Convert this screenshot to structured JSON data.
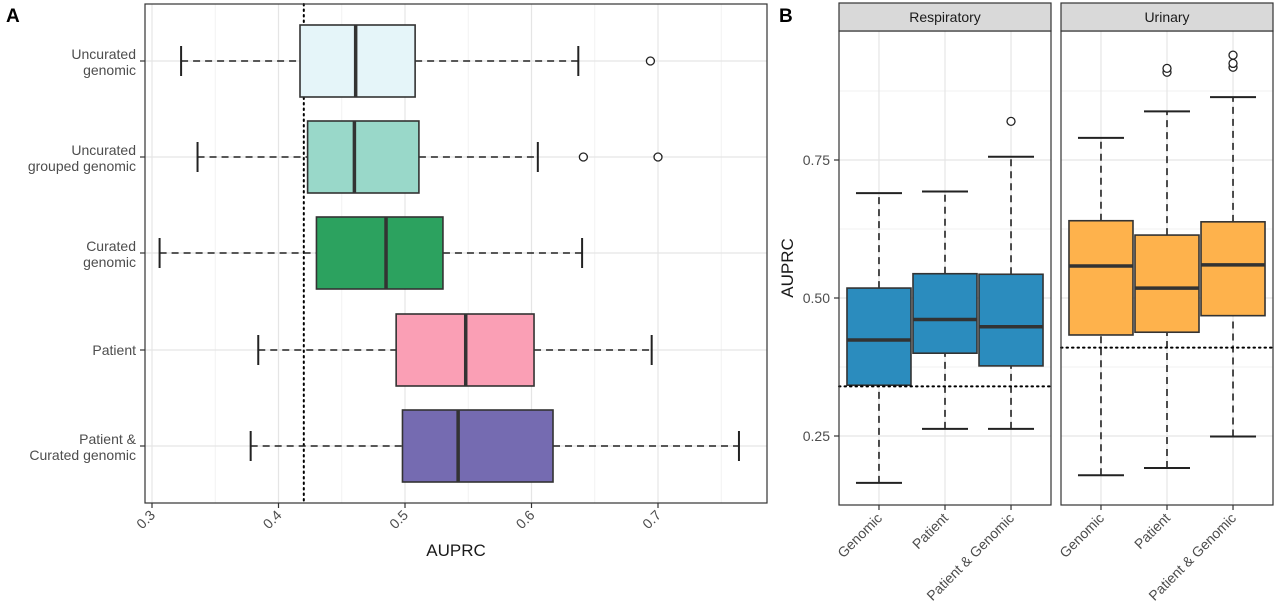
{
  "chart_data": [
    {
      "panel": "A",
      "type": "boxplot",
      "orientation": "horizontal",
      "xlabel": "AUPRC",
      "xlim": [
        0.3,
        0.77
      ],
      "xticks": [
        "0.3",
        "0.4",
        "0.5",
        "0.6",
        "0.7"
      ],
      "xtick_values": [
        0.3,
        0.4,
        0.5,
        0.6,
        0.7
      ],
      "reference_line": 0.42,
      "grid": true,
      "categories": [
        {
          "label": [
            "Uncurated",
            "genomic"
          ],
          "color": "#e5f5f9",
          "whisker_low": 0.323,
          "q1": 0.417,
          "median": 0.461,
          "q3": 0.508,
          "whisker_high": 0.637,
          "outliers": [
            0.694
          ]
        },
        {
          "label": [
            "Uncurated",
            "grouped genomic"
          ],
          "color": "#99d8c9",
          "whisker_low": 0.336,
          "q1": 0.423,
          "median": 0.46,
          "q3": 0.511,
          "whisker_high": 0.605,
          "outliers": [
            0.641,
            0.7
          ]
        },
        {
          "label": [
            "Curated",
            "genomic"
          ],
          "color": "#2ca25f",
          "whisker_low": 0.306,
          "q1": 0.43,
          "median": 0.485,
          "q3": 0.53,
          "whisker_high": 0.64,
          "outliers": []
        },
        {
          "label": [
            "Patient"
          ],
          "color": "#fa9fb5",
          "whisker_low": 0.384,
          "q1": 0.493,
          "median": 0.548,
          "q3": 0.602,
          "whisker_high": 0.695,
          "outliers": []
        },
        {
          "label": [
            "Patient &",
            "Curated genomic"
          ],
          "color": "#756bb1",
          "whisker_low": 0.378,
          "q1": 0.498,
          "median": 0.542,
          "q3": 0.617,
          "whisker_high": 0.764,
          "outliers": []
        }
      ]
    },
    {
      "panel": "B",
      "type": "boxplot",
      "orientation": "vertical",
      "ylabel": "AUPRC",
      "ylim": [
        0.15,
        0.97
      ],
      "yticks": [
        "0.25",
        "0.50",
        "0.75"
      ],
      "ytick_values": [
        0.25,
        0.5,
        0.75
      ],
      "grid": true,
      "facets": [
        {
          "title": "Respiratory",
          "color": "#2b8cbe",
          "reference_line": 0.34,
          "categories": [
            "Genomic",
            "Patient",
            "Patient & Genomic"
          ],
          "boxes": [
            {
              "whisker_low": 0.165,
              "q1": 0.342,
              "median": 0.424,
              "q3": 0.518,
              "whisker_high": 0.69,
              "outliers": []
            },
            {
              "whisker_low": 0.263,
              "q1": 0.4,
              "median": 0.461,
              "q3": 0.544,
              "whisker_high": 0.693,
              "outliers": []
            },
            {
              "whisker_low": 0.263,
              "q1": 0.377,
              "median": 0.448,
              "q3": 0.543,
              "whisker_high": 0.756,
              "outliers": [
                0.82
              ]
            }
          ]
        },
        {
          "title": "Urinary",
          "color": "#feb24c",
          "reference_line": 0.41,
          "categories": [
            "Genomic",
            "Patient",
            "Patient & Genomic"
          ],
          "boxes": [
            {
              "whisker_low": 0.179,
              "q1": 0.433,
              "median": 0.558,
              "q3": 0.64,
              "whisker_high": 0.79,
              "outliers": []
            },
            {
              "whisker_low": 0.192,
              "q1": 0.438,
              "median": 0.518,
              "q3": 0.614,
              "whisker_high": 0.838,
              "outliers": [
                0.909,
                0.916
              ]
            },
            {
              "whisker_low": 0.249,
              "q1": 0.468,
              "median": 0.56,
              "q3": 0.638,
              "whisker_high": 0.864,
              "outliers": [
                0.918,
                0.925,
                0.94
              ]
            }
          ]
        }
      ]
    }
  ]
}
